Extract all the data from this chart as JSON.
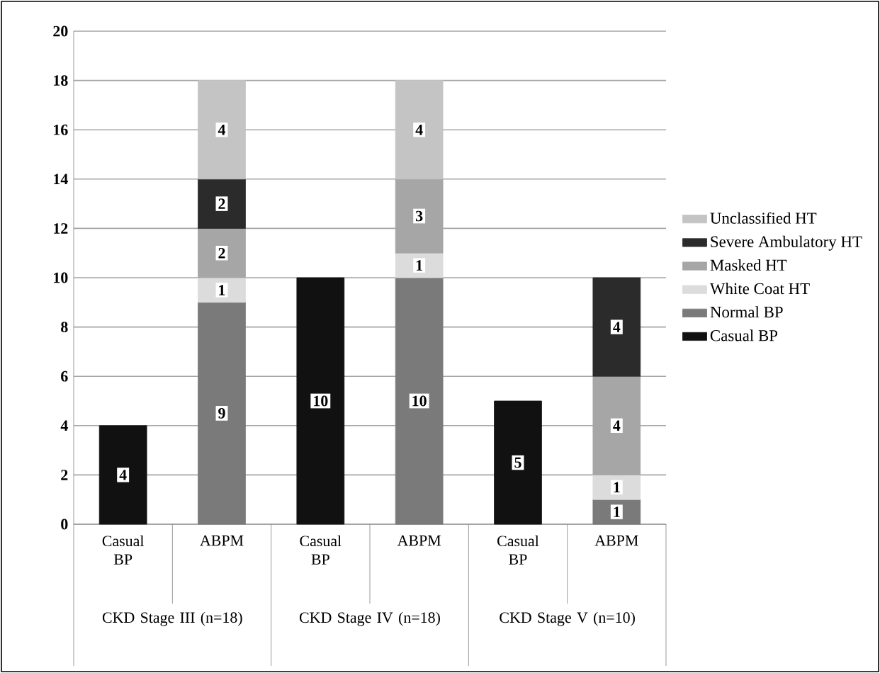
{
  "chart_data": {
    "type": "bar",
    "stacked": true,
    "categories": [
      "Casual BP",
      "ABPM",
      "Casual BP",
      "ABPM",
      "Casual BP",
      "ABPM"
    ],
    "series": [
      {
        "name": "Casual BP",
        "color": "#111111",
        "values": [
          4,
          null,
          10,
          null,
          5,
          null
        ]
      },
      {
        "name": "Normal BP",
        "color": "#7a7a7a",
        "values": [
          null,
          9,
          null,
          10,
          null,
          1
        ]
      },
      {
        "name": "White Coat HT",
        "color": "#dcdcdc",
        "values": [
          null,
          1,
          null,
          1,
          null,
          1
        ]
      },
      {
        "name": "Masked HT",
        "color": "#a6a6a6",
        "values": [
          null,
          2,
          null,
          3,
          null,
          4
        ]
      },
      {
        "name": "Severe Ambulatory HT",
        "color": "#2b2b2b",
        "values": [
          null,
          2,
          null,
          null,
          null,
          4
        ]
      },
      {
        "name": "Unclassified HT",
        "color": "#c4c4c4",
        "values": [
          null,
          4,
          null,
          4,
          null,
          null
        ]
      }
    ],
    "ylim": [
      0,
      20
    ],
    "yticks": [
      0,
      2,
      4,
      6,
      8,
      10,
      12,
      14,
      16,
      18,
      20
    ],
    "grid": "y",
    "legend": "right",
    "data_labels": true,
    "annotations": [
      "CKD Stage III (n=18)",
      "CKD Stage IV (n=18)",
      "CKD Stage V (n=10)"
    ]
  }
}
